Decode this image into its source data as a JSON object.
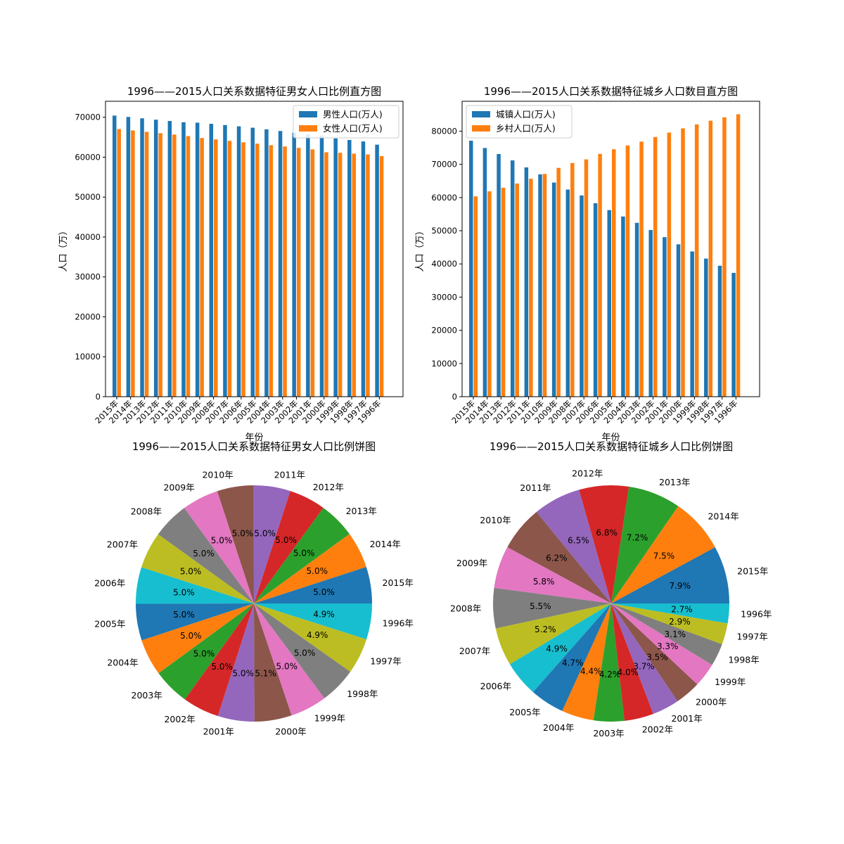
{
  "years": [
    "2015年",
    "2014年",
    "2013年",
    "2012年",
    "2011年",
    "2010年",
    "2009年",
    "2008年",
    "2007年",
    "2006年",
    "2005年",
    "2004年",
    "2003年",
    "2002年",
    "2001年",
    "2000年",
    "1999年",
    "1998年",
    "1997年",
    "1996年"
  ],
  "chart_data": [
    {
      "type": "bar",
      "title": "1996——2015人口关系数据特征男女人口比例直方图",
      "xlabel": "年份",
      "ylabel": "人口（万）",
      "ylim": [
        0,
        74000
      ],
      "yticks": [
        0,
        10000,
        20000,
        30000,
        40000,
        50000,
        60000,
        70000
      ],
      "legend_position": "upper right",
      "series": [
        {
          "name": "男性人口(万人)",
          "color": "#1f77b4",
          "values": [
            70414,
            70079,
            69728,
            69395,
            69068,
            68748,
            68647,
            68357,
            68048,
            67728,
            67375,
            66976,
            66556,
            66115,
            65672,
            65437,
            64692,
            64303,
            63940,
            63131
          ]
        },
        {
          "name": "女性人口(万人)",
          "color": "#ff7f0e",
          "values": [
            67048,
            66703,
            66344,
            66009,
            65667,
            65287,
            64803,
            64446,
            64081,
            63720,
            63381,
            63012,
            62671,
            62338,
            61955,
            61228,
            61094,
            60891,
            60686,
            60258
          ]
        }
      ]
    },
    {
      "type": "bar",
      "title": "1996——2015人口关系数据特征城乡人口数目直方图",
      "xlabel": "年份",
      "ylabel": "人口（万）",
      "ylim": [
        0,
        89000
      ],
      "yticks": [
        0,
        10000,
        20000,
        30000,
        40000,
        50000,
        60000,
        70000,
        80000
      ],
      "legend_position": "upper left",
      "series": [
        {
          "name": "城镇人口(万人)",
          "color": "#1f77b4",
          "values": [
            77116,
            74916,
            73111,
            71182,
            69079,
            66978,
            64512,
            62403,
            60633,
            58288,
            56212,
            54283,
            52376,
            50212,
            48064,
            45906,
            43748,
            41608,
            39449,
            37304
          ]
        },
        {
          "name": "乡村人口(万人)",
          "color": "#ff7f0e",
          "values": [
            60346,
            61866,
            62961,
            64222,
            65656,
            67113,
            68938,
            70399,
            71496,
            73160,
            74544,
            75705,
            76851,
            78241,
            79563,
            80837,
            82038,
            83153,
            84177,
            85085
          ]
        }
      ]
    },
    {
      "type": "pie",
      "title": "1996——2015人口关系数据特征男女人口比例饼图",
      "labels": [
        "2015年",
        "2014年",
        "2013年",
        "2012年",
        "2011年",
        "2010年",
        "2009年",
        "2008年",
        "2007年",
        "2006年",
        "2005年",
        "2004年",
        "2003年",
        "2002年",
        "2001年",
        "2000年",
        "1999年",
        "1998年",
        "1997年",
        "1996年"
      ],
      "pct_labels": [
        "5.0%",
        "5.0%",
        "5.0%",
        "5.0%",
        "5.0%",
        "5.0%",
        "5.0%",
        "5.0%",
        "5.0%",
        "5.0%",
        "5.0%",
        "5.0%",
        "5.0%",
        "5.0%",
        "5.0%",
        "5.1%",
        "5.0%",
        "5.0%",
        "4.9%",
        "4.9%"
      ],
      "values": [
        5.0,
        5.0,
        5.0,
        5.0,
        5.0,
        5.0,
        5.0,
        5.0,
        5.0,
        5.0,
        5.0,
        5.0,
        5.0,
        5.0,
        5.0,
        5.1,
        5.0,
        5.0,
        4.9,
        4.9
      ]
    },
    {
      "type": "pie",
      "title": "1996——2015人口关系数据特征城乡人口比例饼图",
      "labels": [
        "2015年",
        "2014年",
        "2013年",
        "2012年",
        "2011年",
        "2010年",
        "2009年",
        "2008年",
        "2007年",
        "2006年",
        "2005年",
        "2004年",
        "2003年",
        "2002年",
        "2001年",
        "2000年",
        "1999年",
        "1998年",
        "1997年",
        "1996年"
      ],
      "pct_labels": [
        "7.9%",
        "7.5%",
        "7.2%",
        "6.8%",
        "6.5%",
        "6.2%",
        "5.8%",
        "5.5%",
        "5.2%",
        "4.9%",
        "4.7%",
        "4.4%",
        "4.2%",
        "4.0%",
        "3.7%",
        "3.5%",
        "3.3%",
        "3.1%",
        "2.9%",
        "2.7%"
      ],
      "values": [
        7.9,
        7.5,
        7.2,
        6.8,
        6.5,
        6.2,
        5.8,
        5.5,
        5.2,
        4.9,
        4.7,
        4.4,
        4.2,
        4.0,
        3.7,
        3.5,
        3.3,
        3.1,
        2.9,
        2.7
      ]
    }
  ],
  "colors": {
    "palette": [
      "#1f77b4",
      "#ff7f0e",
      "#2ca02c",
      "#d62728",
      "#9467bd",
      "#8c564b",
      "#e377c2",
      "#7f7f7f",
      "#bcbd22",
      "#17becf"
    ]
  }
}
